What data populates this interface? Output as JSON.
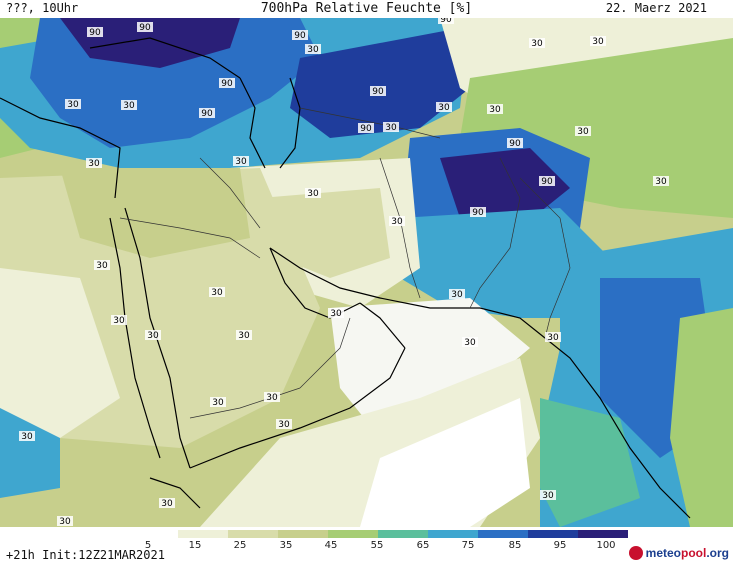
{
  "header": {
    "left": "???, 10Uhr",
    "title": "700hPa Relative Feuchte [%]",
    "date": "22. Maerz 2021"
  },
  "map": {
    "palette": {
      "dry": "#f6f7f2",
      "pale": "#eef0d8",
      "light_olive": "#d8dcaa",
      "olive": "#c7cf8c",
      "green": "#a6cd74",
      "teal": "#5bbf9c",
      "cyan": "#3fa6cf",
      "blue": "#2b6fc4",
      "dark_blue": "#1f3d9c",
      "navy": "#2a1f78"
    },
    "contour_labels": [
      "90",
      "90",
      "90",
      "90",
      "90",
      "90",
      "90",
      "90",
      "90",
      "90",
      "90",
      "30",
      "30",
      "30",
      "30",
      "30",
      "30",
      "30",
      "30",
      "30",
      "30",
      "30",
      "30",
      "30",
      "30",
      "30",
      "30",
      "30",
      "30",
      "30",
      "30",
      "30",
      "30",
      "30",
      "30",
      "30",
      "30",
      "30",
      "30",
      "30",
      "30"
    ]
  },
  "legend": {
    "ticks": [
      "5",
      "15",
      "25",
      "35",
      "45",
      "55",
      "65",
      "75",
      "85",
      "95",
      "100"
    ],
    "colors": [
      "#ffffff",
      "#eef0d8",
      "#d8dcaa",
      "#c7cf8c",
      "#a6cd74",
      "#5bbf9c",
      "#3fa6cf",
      "#2b6fc4",
      "#1f3d9c",
      "#2a1f78",
      "#4b0c5c"
    ]
  },
  "footer": {
    "run": "+21h Init:12Z21MAR2021",
    "logo_prefix": "meteo",
    "logo_accent": "pool",
    "logo_suffix": ".org"
  }
}
